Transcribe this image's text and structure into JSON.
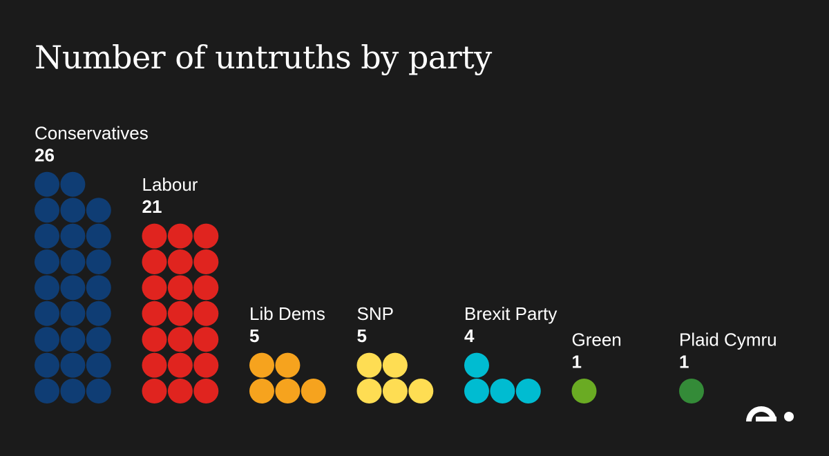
{
  "title": "Number of untruths by party",
  "chart_data": {
    "type": "waffle",
    "title": "Number of untruths by party",
    "unit_per_dot": 1,
    "columns_per_party": 3,
    "parties": [
      {
        "name": "Conservatives",
        "value": 26,
        "color": "#0f3d74"
      },
      {
        "name": "Labour",
        "value": 21,
        "color": "#e0241f"
      },
      {
        "name": "Lib Dems",
        "value": 5,
        "color": "#f6a31e"
      },
      {
        "name": "SNP",
        "value": 5,
        "color": "#fedd53"
      },
      {
        "name": "Brexit Party",
        "value": 4,
        "color": "#00bcd1"
      },
      {
        "name": "Green",
        "value": 1,
        "color": "#6aab23"
      },
      {
        "name": "Plaid Cymru",
        "value": 1,
        "color": "#348b38"
      }
    ]
  },
  "logo": {
    "icon": "publisher-logo-icon",
    "color": "#ffffff"
  }
}
